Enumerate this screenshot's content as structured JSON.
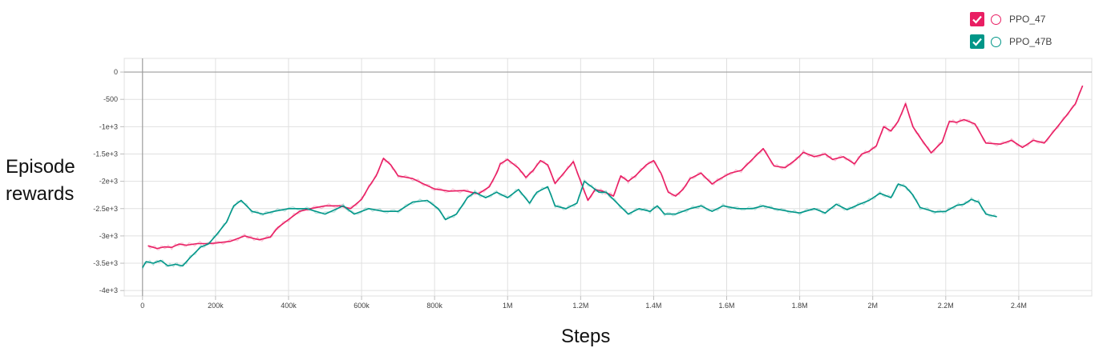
{
  "legend": [
    {
      "name": "PPO_47",
      "color": "#e91e63"
    },
    {
      "name": "PPO_47B",
      "color": "#009688"
    }
  ],
  "chart_data": {
    "type": "line",
    "xlabel": "Steps",
    "ylabel": "Episode rewards",
    "xlim": [
      -50000,
      2600000
    ],
    "ylim": [
      -4100,
      250
    ],
    "x_ticks": [
      0,
      200000,
      400000,
      600000,
      800000,
      1000000,
      1200000,
      1400000,
      1600000,
      1800000,
      2000000,
      2200000,
      2400000
    ],
    "x_tick_labels": [
      "0",
      "200k",
      "400k",
      "600k",
      "800k",
      "1M",
      "1.2M",
      "1.4M",
      "1.6M",
      "1.8M",
      "2M",
      "2.2M",
      "2.4M"
    ],
    "y_ticks": [
      0,
      -500,
      -1000,
      -1500,
      -2000,
      -2500,
      -3000,
      -3500,
      -4000
    ],
    "y_tick_labels": [
      "0",
      "-500",
      "-1e+3",
      "-1.5e+3",
      "-2e+3",
      "-2.5e+3",
      "-3e+3",
      "-3.5e+3",
      "-4e+3"
    ],
    "grid": true,
    "legend_position": "top-right",
    "series": [
      {
        "name": "PPO_47",
        "color": "#e91e63",
        "x": [
          15000,
          40000,
          60000,
          80000,
          100000,
          120000,
          150000,
          180000,
          200000,
          240000,
          280000,
          300000,
          320000,
          350000,
          370000,
          400000,
          430000,
          460000,
          500000,
          540000,
          570000,
          600000,
          620000,
          640000,
          660000,
          680000,
          700000,
          740000,
          770000,
          800000,
          840000,
          880000,
          920000,
          950000,
          970000,
          980000,
          1000000,
          1030000,
          1050000,
          1070000,
          1090000,
          1110000,
          1130000,
          1160000,
          1180000,
          1200000,
          1220000,
          1240000,
          1260000,
          1290000,
          1310000,
          1330000,
          1350000,
          1380000,
          1400000,
          1420000,
          1440000,
          1460000,
          1480000,
          1500000,
          1530000,
          1560000,
          1580000,
          1610000,
          1640000,
          1670000,
          1700000,
          1730000,
          1760000,
          1790000,
          1810000,
          1840000,
          1870000,
          1890000,
          1920000,
          1950000,
          1970000,
          1990000,
          2010000,
          2030000,
          2050000,
          2070000,
          2090000,
          2110000,
          2130000,
          2160000,
          2190000,
          2210000,
          2230000,
          2250000,
          2280000,
          2310000,
          2350000,
          2380000,
          2410000,
          2440000,
          2470000,
          2500000,
          2530000,
          2555000,
          2575000
        ],
        "y": [
          -3180,
          -3230,
          -3200,
          -3210,
          -3150,
          -3170,
          -3140,
          -3140,
          -3130,
          -3100,
          -3000,
          -3040,
          -3070,
          -3020,
          -2850,
          -2700,
          -2550,
          -2500,
          -2450,
          -2450,
          -2500,
          -2330,
          -2100,
          -1900,
          -1580,
          -1700,
          -1900,
          -1950,
          -2050,
          -2140,
          -2180,
          -2170,
          -2230,
          -2100,
          -1850,
          -1680,
          -1600,
          -1760,
          -1930,
          -1800,
          -1620,
          -1700,
          -2040,
          -1800,
          -1640,
          -2000,
          -2350,
          -2150,
          -2180,
          -2270,
          -1900,
          -2000,
          -1900,
          -1700,
          -1620,
          -1850,
          -2200,
          -2270,
          -2150,
          -1950,
          -1850,
          -2050,
          -1960,
          -1850,
          -1800,
          -1600,
          -1400,
          -1720,
          -1750,
          -1600,
          -1470,
          -1550,
          -1500,
          -1600,
          -1550,
          -1680,
          -1500,
          -1450,
          -1350,
          -1000,
          -1080,
          -900,
          -580,
          -1000,
          -1200,
          -1480,
          -1280,
          -900,
          -920,
          -870,
          -950,
          -1300,
          -1320,
          -1250,
          -1380,
          -1250,
          -1300,
          -1050,
          -800,
          -580,
          -250
        ]
      },
      {
        "name": "PPO_47B",
        "color": "#009688",
        "x": [
          0,
          10000,
          30000,
          50000,
          70000,
          90000,
          110000,
          130000,
          160000,
          180000,
          200000,
          230000,
          250000,
          270000,
          300000,
          330000,
          360000,
          400000,
          450000,
          500000,
          550000,
          580000,
          620000,
          660000,
          700000,
          740000,
          780000,
          810000,
          830000,
          860000,
          890000,
          910000,
          940000,
          970000,
          1000000,
          1030000,
          1060000,
          1080000,
          1110000,
          1130000,
          1160000,
          1190000,
          1210000,
          1230000,
          1250000,
          1270000,
          1300000,
          1330000,
          1360000,
          1390000,
          1410000,
          1430000,
          1460000,
          1500000,
          1530000,
          1560000,
          1590000,
          1630000,
          1670000,
          1700000,
          1730000,
          1770000,
          1800000,
          1840000,
          1870000,
          1900000,
          1930000,
          1960000,
          1990000,
          2020000,
          2050000,
          2070000,
          2090000,
          2110000,
          2130000,
          2170000,
          2200000,
          2230000,
          2250000,
          2270000,
          2290000,
          2310000,
          2340000
        ],
        "y": [
          -3580,
          -3470,
          -3500,
          -3450,
          -3550,
          -3520,
          -3550,
          -3400,
          -3200,
          -3150,
          -3000,
          -2750,
          -2450,
          -2350,
          -2550,
          -2600,
          -2550,
          -2500,
          -2500,
          -2600,
          -2450,
          -2600,
          -2500,
          -2550,
          -2550,
          -2380,
          -2350,
          -2500,
          -2700,
          -2600,
          -2300,
          -2200,
          -2300,
          -2200,
          -2300,
          -2150,
          -2400,
          -2200,
          -2100,
          -2450,
          -2500,
          -2400,
          -2000,
          -2100,
          -2200,
          -2200,
          -2400,
          -2600,
          -2500,
          -2550,
          -2450,
          -2600,
          -2600,
          -2500,
          -2450,
          -2550,
          -2450,
          -2500,
          -2500,
          -2450,
          -2500,
          -2550,
          -2580,
          -2500,
          -2580,
          -2420,
          -2520,
          -2430,
          -2350,
          -2220,
          -2300,
          -2050,
          -2100,
          -2250,
          -2480,
          -2560,
          -2550,
          -2440,
          -2420,
          -2330,
          -2380,
          -2600,
          -2650
        ]
      }
    ]
  }
}
